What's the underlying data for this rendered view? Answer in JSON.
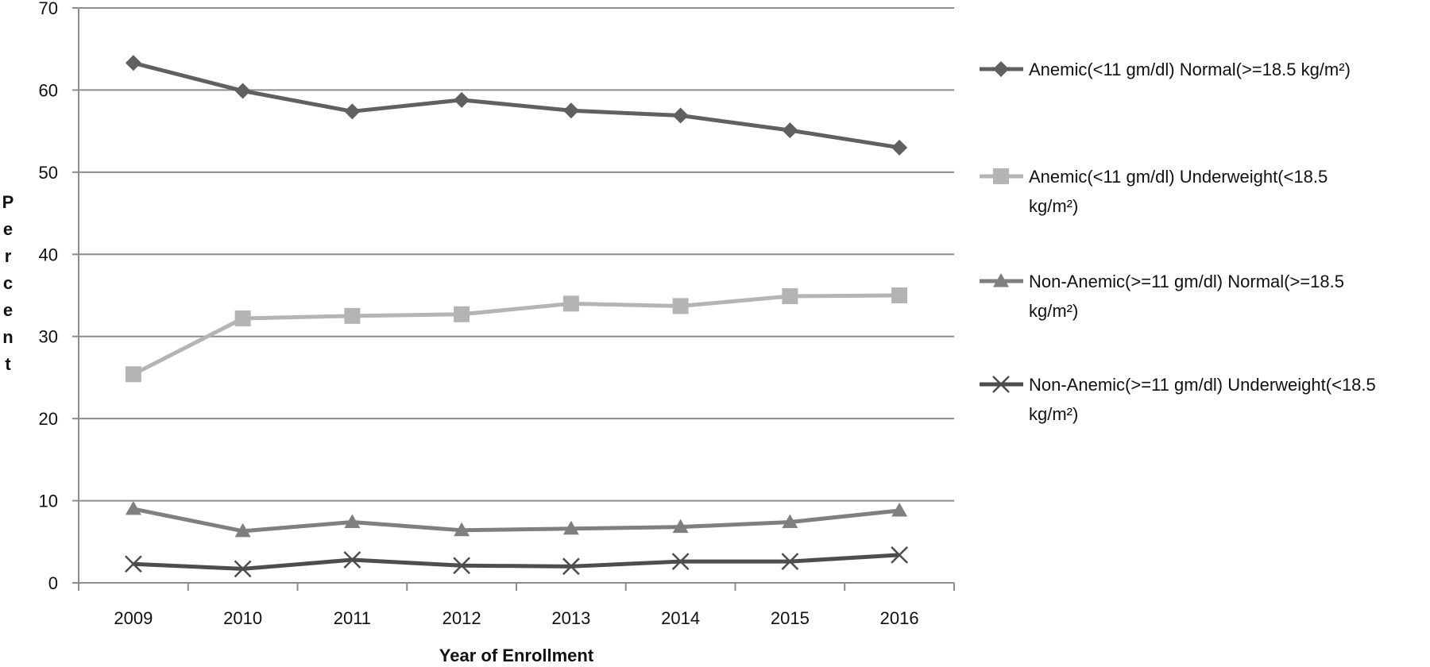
{
  "chart_data": {
    "type": "line",
    "xlabel": "Year of Enrollment",
    "ylabel": "Percent",
    "ylim": [
      0,
      70
    ],
    "yticks": [
      "0",
      "10",
      "20",
      "30",
      "40",
      "50",
      "60",
      "70"
    ],
    "grid": "horizontal",
    "legend_position": "right",
    "categories": [
      "2009",
      "2010",
      "2011",
      "2012",
      "2013",
      "2014",
      "2015",
      "2016"
    ],
    "series": [
      {
        "name_lines": [
          "Anemic(<11 gm/dl) Normal(>=18.5 kg/m²)"
        ],
        "values": [
          63.3,
          59.9,
          57.4,
          58.8,
          57.5,
          56.9,
          55.1,
          53.0
        ],
        "marker": "diamond",
        "color": "#606060"
      },
      {
        "name_lines": [
          "Anemic(<11 gm/dl) Underweight(<18.5",
          "kg/m²)"
        ],
        "values": [
          25.4,
          32.2,
          32.5,
          32.7,
          34.0,
          33.7,
          34.9,
          35.0
        ],
        "marker": "square",
        "color": "#b4b4b4"
      },
      {
        "name_lines": [
          "Non-Anemic(>=11 gm/dl) Normal(>=18.5",
          "kg/m²)"
        ],
        "values": [
          9.0,
          6.3,
          7.4,
          6.4,
          6.6,
          6.8,
          7.4,
          8.8
        ],
        "marker": "triangle",
        "color": "#7f7f7f"
      },
      {
        "name_lines": [
          "Non-Anemic(>=11 gm/dl) Underweight(<18.5",
          "kg/m²)"
        ],
        "values": [
          2.3,
          1.7,
          2.8,
          2.1,
          2.0,
          2.6,
          2.6,
          3.4
        ],
        "marker": "x",
        "color": "#4d4d4d"
      }
    ]
  }
}
